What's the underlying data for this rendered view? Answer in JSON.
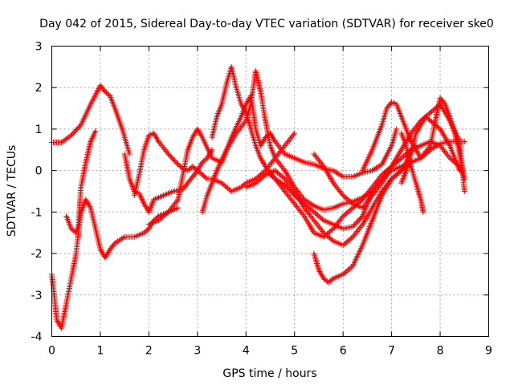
{
  "chart_data": {
    "type": "scatter",
    "title": "Day 042 of 2015, Sidereal Day-to-day VTEC variation (SDTVAR) for receiver ske0",
    "xlabel": "GPS time / hours",
    "ylabel": "SDTVAR / TECUs",
    "xlim": [
      0,
      9
    ],
    "ylim": [
      -4,
      3
    ],
    "xticks": [
      0,
      1,
      2,
      3,
      4,
      5,
      6,
      7,
      8,
      9
    ],
    "yticks": [
      -4,
      -3,
      -2,
      -1,
      0,
      1,
      2,
      3
    ],
    "grid": true,
    "legend": "none",
    "marker": "plus",
    "color": "#ff0000",
    "series": [
      {
        "x": [
          0.0,
          0.2,
          0.4,
          0.6,
          0.8,
          1.0,
          1.1,
          1.2,
          1.3,
          1.45,
          1.6
        ],
        "y": [
          0.68,
          0.68,
          0.85,
          1.1,
          1.6,
          2.05,
          1.9,
          1.8,
          1.5,
          1.0,
          0.4
        ]
      },
      {
        "x": [
          1.5,
          1.6,
          1.7,
          1.8,
          1.9,
          2.0,
          2.1,
          2.3,
          2.5,
          2.7,
          2.8,
          2.9,
          3.0,
          3.1,
          3.2,
          3.3
        ],
        "y": [
          0.4,
          -0.2,
          -0.5,
          -0.55,
          -0.8,
          -1.0,
          -0.7,
          -0.6,
          -0.5,
          -0.45,
          -0.3,
          -0.15,
          0.0,
          0.2,
          0.3,
          0.5
        ]
      },
      {
        "x": [
          3.3,
          3.4,
          3.5,
          3.6,
          3.7,
          3.8,
          3.9,
          4.0,
          4.1,
          4.2,
          4.3,
          4.4,
          4.6,
          4.8,
          5.0,
          5.2,
          5.4,
          5.6,
          5.8,
          6.0,
          6.2,
          6.4,
          6.6,
          6.8,
          7.0
        ],
        "y": [
          0.8,
          1.3,
          1.6,
          2.1,
          2.5,
          2.0,
          1.6,
          1.4,
          1.0,
          0.6,
          0.3,
          0.1,
          -0.2,
          -0.5,
          -0.8,
          -1.1,
          -1.5,
          -1.6,
          -1.4,
          -1.1,
          -0.9,
          -0.7,
          -0.4,
          -0.1,
          0.1
        ]
      },
      {
        "x": [
          0.0,
          0.05,
          0.1,
          0.2,
          0.3,
          0.4,
          0.5,
          0.6,
          0.7,
          0.8,
          0.9,
          1.0,
          1.1,
          1.2,
          1.3,
          1.5,
          1.7,
          1.9,
          2.0,
          2.1,
          2.2,
          2.4,
          2.6
        ],
        "y": [
          -2.5,
          -3.0,
          -3.6,
          -3.8,
          -3.2,
          -2.6,
          -2.0,
          -1.0,
          -0.7,
          -0.9,
          -1.4,
          -1.9,
          -2.1,
          -1.9,
          -1.75,
          -1.6,
          -1.6,
          -1.5,
          -1.4,
          -1.2,
          -1.1,
          -1.0,
          -0.9
        ]
      },
      {
        "x": [
          0.3,
          0.4,
          0.5,
          0.55,
          0.6,
          0.7,
          0.8,
          0.9
        ],
        "y": [
          -1.1,
          -1.4,
          -1.5,
          -1.3,
          -0.4,
          0.2,
          0.7,
          0.95
        ]
      },
      {
        "x": [
          1.7,
          1.8,
          1.9,
          2.0,
          2.1,
          2.2,
          2.4,
          2.6,
          2.7,
          2.8,
          2.9,
          3.0,
          3.1,
          3.2,
          3.3,
          3.5,
          3.7,
          3.9,
          4.0,
          4.2,
          4.4,
          4.6,
          4.8,
          5.0
        ],
        "y": [
          -0.6,
          -0.1,
          0.5,
          0.85,
          0.9,
          0.7,
          0.4,
          0.15,
          0.05,
          0.0,
          0.1,
          0.0,
          -0.1,
          -0.2,
          -0.2,
          -0.3,
          -0.5,
          -0.4,
          -0.3,
          -0.2,
          0.0,
          0.3,
          0.6,
          0.9
        ]
      },
      {
        "x": [
          2.0,
          2.2,
          2.4,
          2.6,
          2.7,
          2.8,
          2.9,
          3.0,
          3.1,
          3.3,
          3.5,
          3.7,
          3.9,
          4.0,
          4.1,
          4.2,
          4.3,
          4.4,
          4.5,
          4.6,
          4.8,
          5.0,
          5.2,
          5.4,
          5.6,
          5.8,
          6.0,
          6.2,
          6.4,
          6.6,
          6.8,
          7.0,
          7.1
        ],
        "y": [
          -1.3,
          -1.2,
          -1.0,
          -0.7,
          -0.1,
          0.5,
          0.8,
          1.0,
          0.8,
          0.3,
          0.2,
          0.8,
          1.3,
          1.6,
          1.8,
          1.0,
          0.6,
          0.8,
          0.9,
          0.7,
          0.4,
          0.3,
          0.2,
          0.15,
          0.05,
          0.0,
          -0.15,
          -0.15,
          -0.05,
          0.0,
          0.15,
          0.6,
          1.0
        ]
      },
      {
        "x": [
          3.1,
          3.2,
          3.4,
          3.6,
          3.8,
          4.0,
          4.1,
          4.2,
          4.3,
          4.4,
          4.5,
          4.6,
          4.8,
          5.0,
          5.2,
          5.4,
          5.6,
          5.8,
          6.0,
          6.2,
          6.4,
          6.6,
          6.8,
          7.0,
          7.2,
          7.4,
          7.5
        ],
        "y": [
          -1.0,
          -0.6,
          0.0,
          0.5,
          0.9,
          1.2,
          1.6,
          2.4,
          1.9,
          1.2,
          0.6,
          0.3,
          0.0,
          -0.4,
          -0.7,
          -0.85,
          -0.95,
          -0.9,
          -0.8,
          -0.75,
          -0.65,
          -0.5,
          -0.2,
          0.1,
          0.3,
          0.5,
          0.6
        ]
      },
      {
        "x": [
          4.5,
          4.6,
          4.8,
          5.0,
          5.2,
          5.4,
          5.6,
          5.8,
          6.0,
          6.2,
          6.4,
          6.5,
          6.6,
          6.8,
          7.0,
          7.2,
          7.4,
          7.6,
          7.8,
          8.0,
          8.2,
          8.4,
          8.5
        ],
        "y": [
          -0.1,
          -0.2,
          -0.35,
          -0.6,
          -0.8,
          -1.0,
          -1.2,
          -1.3,
          -1.4,
          -1.35,
          -1.1,
          -0.8,
          -0.5,
          -0.2,
          0.0,
          0.1,
          0.2,
          0.3,
          0.5,
          0.65,
          0.7,
          0.7,
          0.7
        ]
      },
      {
        "x": [
          5.4,
          5.5,
          5.6,
          5.7,
          5.8,
          6.0,
          6.2,
          6.4,
          6.6,
          6.8,
          7.0,
          7.2,
          7.3,
          7.4,
          7.6,
          7.8,
          8.0,
          8.2,
          8.4,
          8.5
        ],
        "y": [
          -2.0,
          -2.4,
          -2.6,
          -2.7,
          -2.6,
          -2.5,
          -2.3,
          -1.8,
          -1.2,
          -0.6,
          -0.2,
          0.0,
          0.2,
          0.5,
          0.6,
          0.7,
          0.6,
          0.3,
          0.1,
          -0.2
        ]
      },
      {
        "x": [
          5.4,
          5.6,
          5.8,
          6.0,
          6.2,
          6.4,
          6.6,
          6.8,
          7.0,
          7.1,
          7.2,
          7.4,
          7.6,
          7.8,
          8.0,
          8.2,
          8.4,
          8.5
        ],
        "y": [
          0.4,
          0.1,
          -0.3,
          -0.6,
          -0.8,
          -0.9,
          -0.6,
          -0.3,
          0.1,
          0.3,
          0.5,
          0.9,
          1.2,
          1.4,
          1.6,
          1.2,
          0.7,
          -0.5
        ]
      },
      {
        "x": [
          6.4,
          6.6,
          6.8,
          6.9,
          7.0,
          7.1,
          7.2,
          7.3,
          7.4,
          7.5,
          7.6,
          7.8,
          7.9,
          8.0,
          8.1,
          8.2,
          8.3,
          8.4,
          8.5
        ],
        "y": [
          0.0,
          0.5,
          1.1,
          1.5,
          1.65,
          1.6,
          1.3,
          1.0,
          0.7,
          0.5,
          0.3,
          0.6,
          1.2,
          1.75,
          1.6,
          1.3,
          0.9,
          0.4,
          -0.2
        ]
      },
      {
        "x": [
          7.2,
          7.3,
          7.4,
          7.5,
          7.6,
          7.65
        ],
        "y": [
          0.9,
          0.6,
          0.1,
          -0.3,
          -0.7,
          -1.0
        ]
      },
      {
        "x": [
          7.2,
          7.3,
          7.4,
          7.5,
          7.6,
          7.7,
          7.8,
          7.9,
          8.0,
          8.1,
          8.2,
          8.3,
          8.4
        ],
        "y": [
          -0.3,
          0.0,
          0.4,
          0.9,
          1.1,
          1.3,
          1.2,
          1.1,
          1.0,
          0.8,
          0.6,
          0.3,
          0.0
        ]
      },
      {
        "x": [
          4.0,
          4.2,
          4.4,
          4.6,
          4.8,
          5.0,
          5.2,
          5.4,
          5.6,
          5.8,
          6.0,
          6.2,
          6.4,
          6.6,
          6.8,
          7.0,
          7.2,
          7.4
        ],
        "y": [
          -0.4,
          -0.3,
          -0.1,
          0.0,
          -0.2,
          -0.5,
          -0.9,
          -1.2,
          -1.5,
          -1.7,
          -1.8,
          -1.6,
          -1.3,
          -0.9,
          -0.5,
          -0.2,
          0.0,
          0.2
        ]
      }
    ]
  }
}
